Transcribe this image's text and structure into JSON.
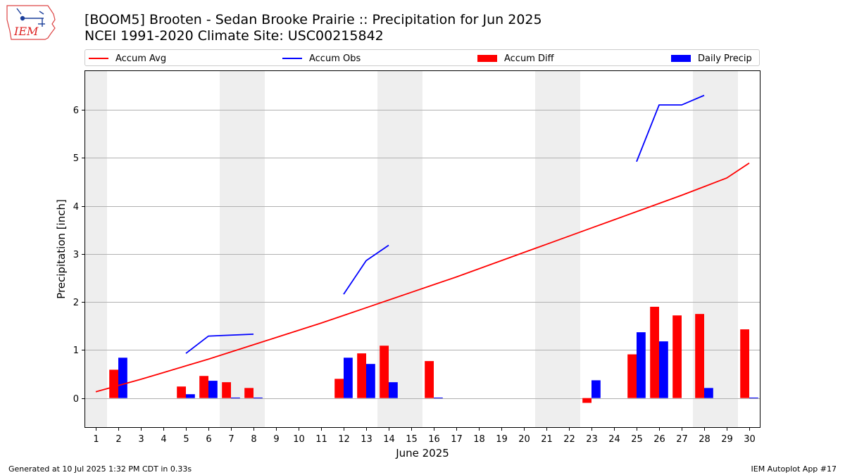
{
  "header": {
    "logo_text": "IEM",
    "title_line1": "[BOOM5] Brooten - Sedan Brooke Prairie :: Precipitation for Jun 2025",
    "title_line2": "NCEI 1991-2020 Climate Site: USC00215842"
  },
  "footer": {
    "left": "Generated at 10 Jul 2025 1:32 PM CDT in 0.33s",
    "right": "IEM Autoplot App #17"
  },
  "colors": {
    "avg": "#ff0000",
    "obs": "#0000ff",
    "diff": "#ff0000",
    "daily": "#0000ff",
    "weekend": "#eeeeee",
    "grid": "#b0b0b0"
  },
  "chart_data": {
    "type": "bar",
    "title": "[BOOM5] Brooten - Sedan Brooke Prairie :: Precipitation for Jun 2025",
    "xlabel": "June 2025",
    "ylabel": "Precipitation [inch]",
    "xlim": [
      0.5,
      30.5
    ],
    "ylim": [
      -0.62,
      6.82
    ],
    "yticks": [
      0,
      1,
      2,
      3,
      4,
      5,
      6
    ],
    "legend_position": "top",
    "grid": "horizontal",
    "days": [
      1,
      2,
      3,
      4,
      5,
      6,
      7,
      8,
      9,
      10,
      11,
      12,
      13,
      14,
      15,
      16,
      17,
      18,
      19,
      20,
      21,
      22,
      23,
      24,
      25,
      26,
      27,
      28,
      29,
      30
    ],
    "weekend_days": [
      1,
      7,
      8,
      14,
      15,
      21,
      22,
      28,
      29
    ],
    "legend": [
      "Accum Avg",
      "Accum Obs",
      "Accum Diff",
      "Daily Precip"
    ],
    "series": [
      {
        "name": "Accum Avg",
        "type": "line",
        "values": [
          0.13,
          0.26,
          0.39,
          0.53,
          0.67,
          0.81,
          0.96,
          1.11,
          1.26,
          1.41,
          1.56,
          1.72,
          1.88,
          2.04,
          2.2,
          2.36,
          2.52,
          2.69,
          2.86,
          3.03,
          3.2,
          3.37,
          3.54,
          3.71,
          3.88,
          4.05,
          4.22,
          4.4,
          4.58,
          4.89
        ]
      },
      {
        "name": "Accum Obs",
        "type": "line",
        "segments": [
          {
            "days": [
              5,
              6,
              8
            ],
            "values": [
              0.93,
              1.29,
              1.33
            ]
          },
          {
            "days": [
              12,
              13,
              14
            ],
            "values": [
              2.16,
              2.86,
              3.18
            ]
          },
          {
            "days": [
              25,
              26,
              27,
              28
            ],
            "values": [
              4.92,
              6.1,
              6.1,
              6.3
            ]
          }
        ]
      },
      {
        "name": "Accum Diff",
        "type": "bar",
        "points": [
          {
            "day": 2,
            "value": 0.59
          },
          {
            "day": 5,
            "value": 0.24
          },
          {
            "day": 6,
            "value": 0.46
          },
          {
            "day": 7,
            "value": 0.33
          },
          {
            "day": 8,
            "value": 0.21
          },
          {
            "day": 12,
            "value": 0.4
          },
          {
            "day": 13,
            "value": 0.93
          },
          {
            "day": 14,
            "value": 1.09
          },
          {
            "day": 16,
            "value": 0.77
          },
          {
            "day": 23,
            "value": -0.1
          },
          {
            "day": 25,
            "value": 0.91
          },
          {
            "day": 26,
            "value": 1.9
          },
          {
            "day": 27,
            "value": 1.72
          },
          {
            "day": 28,
            "value": 1.75
          },
          {
            "day": 30,
            "value": 1.43
          }
        ]
      },
      {
        "name": "Daily Precip",
        "type": "bar",
        "points": [
          {
            "day": 2,
            "value": 0.84
          },
          {
            "day": 5,
            "value": 0.08
          },
          {
            "day": 6,
            "value": 0.36
          },
          {
            "day": 7,
            "value": 0.01
          },
          {
            "day": 8,
            "value": 0.01
          },
          {
            "day": 12,
            "value": 0.84
          },
          {
            "day": 13,
            "value": 0.71
          },
          {
            "day": 14,
            "value": 0.33
          },
          {
            "day": 16,
            "value": 0.01
          },
          {
            "day": 23,
            "value": 0.37
          },
          {
            "day": 25,
            "value": 1.37
          },
          {
            "day": 26,
            "value": 1.18
          },
          {
            "day": 28,
            "value": 0.21
          },
          {
            "day": 30,
            "value": 0.01
          }
        ]
      }
    ]
  }
}
